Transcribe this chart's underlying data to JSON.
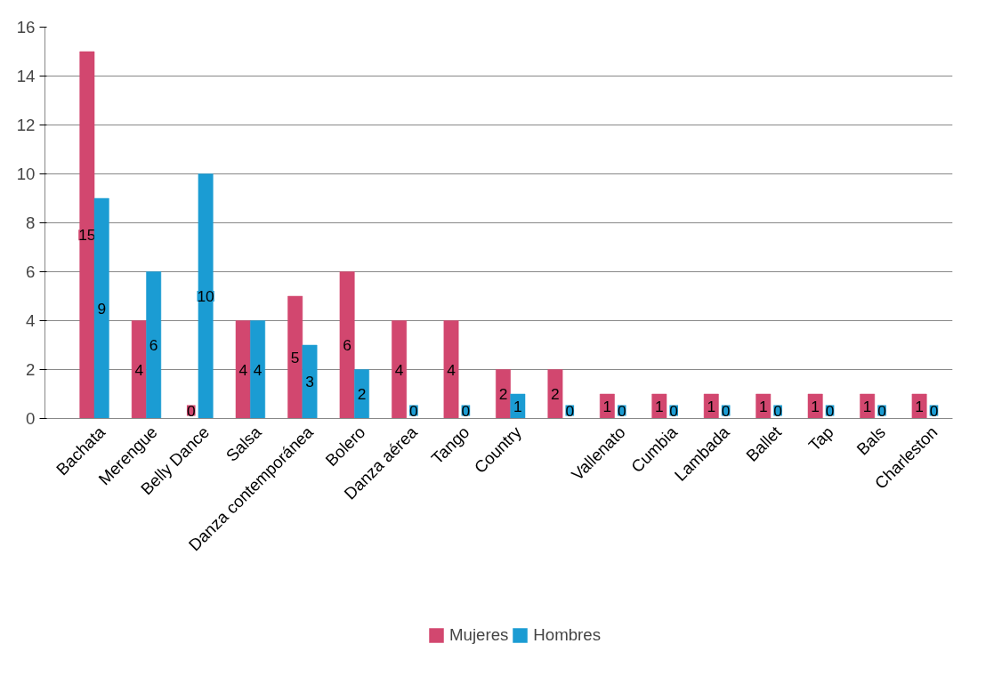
{
  "chart_data": {
    "type": "bar",
    "categories": [
      "Bachata",
      "Merengue",
      "Belly Dance",
      "Salsa",
      "Danza contemporánea",
      "Bolero",
      "Danza aérea",
      "Tango",
      "Country",
      null,
      "Vallenato",
      "Cumbia",
      "Lambada",
      "Ballet",
      "Tap",
      "Bals",
      "Charleston"
    ],
    "series": [
      {
        "name": "Mujeres",
        "color": "#d2476f",
        "values": [
          15,
          4,
          0,
          4,
          5,
          6,
          4,
          4,
          2,
          2,
          1,
          1,
          1,
          1,
          1,
          1,
          1
        ]
      },
      {
        "name": "Hombres",
        "color": "#1b9cd3",
        "values": [
          9,
          6,
          10,
          4,
          3,
          2,
          0,
          0,
          1,
          0,
          0,
          0,
          0,
          0,
          0,
          0,
          0
        ]
      }
    ],
    "ylim": [
      0,
      16
    ],
    "yticks": [
      0,
      2,
      4,
      6,
      8,
      10,
      12,
      14,
      16
    ],
    "grid": "y",
    "legend": "bottom",
    "data_labels": true
  }
}
